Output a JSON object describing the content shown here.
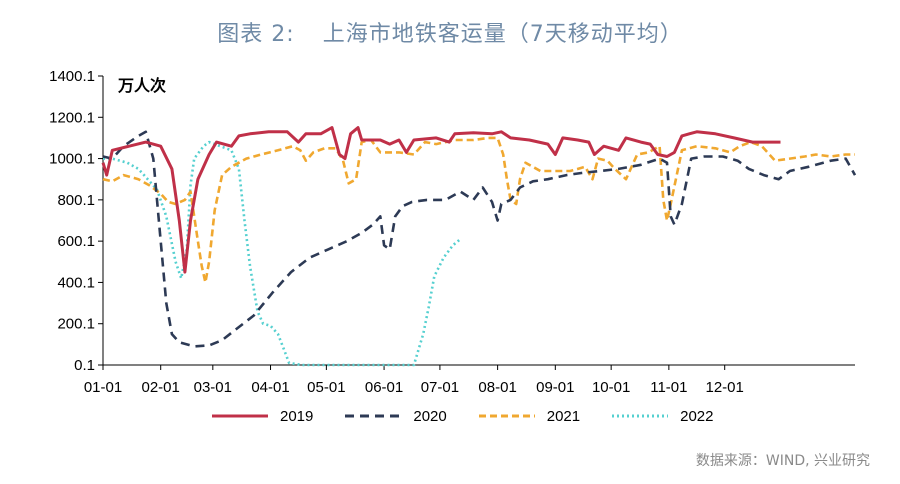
{
  "title": {
    "label": "图表 2:",
    "text": "上海市地铁客运量（7天移动平均）"
  },
  "source": "数据来源：WIND, 兴业研究",
  "colors": {
    "2019": "#c03048",
    "2020": "#2d3a55",
    "2021": "#f0a830",
    "2022": "#56d0d0"
  },
  "chart_data": {
    "type": "line",
    "title": "上海市地铁客运量（7天移动平均）",
    "ylabel": "万人次",
    "xlabel": "",
    "ylim": [
      0.1,
      1400.1
    ],
    "y_ticks": [
      "0.1",
      "200.1",
      "400.1",
      "600.1",
      "800.1",
      "1000.1",
      "1200.1",
      "1400.1"
    ],
    "x_ticks": [
      "01-01",
      "02-01",
      "03-01",
      "04-01",
      "05-01",
      "06-01",
      "07-01",
      "08-01",
      "09-01",
      "10-01",
      "11-01",
      "12-01"
    ],
    "x_unit": "day of year",
    "legend_position": "bottom",
    "series": [
      {
        "name": "2019",
        "style": "solid",
        "points": [
          [
            1,
            980
          ],
          [
            3,
            920
          ],
          [
            6,
            1040
          ],
          [
            15,
            1060
          ],
          [
            24,
            1080
          ],
          [
            32,
            1060
          ],
          [
            38,
            950
          ],
          [
            42,
            700
          ],
          [
            45,
            450
          ],
          [
            48,
            700
          ],
          [
            52,
            900
          ],
          [
            58,
            1020
          ],
          [
            62,
            1080
          ],
          [
            70,
            1060
          ],
          [
            74,
            1110
          ],
          [
            80,
            1120
          ],
          [
            90,
            1130
          ],
          [
            100,
            1130
          ],
          [
            106,
            1080
          ],
          [
            110,
            1120
          ],
          [
            118,
            1120
          ],
          [
            124,
            1150
          ],
          [
            128,
            1020
          ],
          [
            131,
            1000
          ],
          [
            134,
            1120
          ],
          [
            138,
            1150
          ],
          [
            140,
            1090
          ],
          [
            150,
            1090
          ],
          [
            155,
            1070
          ],
          [
            160,
            1090
          ],
          [
            164,
            1030
          ],
          [
            168,
            1090
          ],
          [
            180,
            1100
          ],
          [
            187,
            1080
          ],
          [
            190,
            1120
          ],
          [
            200,
            1125
          ],
          [
            210,
            1120
          ],
          [
            215,
            1130
          ],
          [
            220,
            1100
          ],
          [
            230,
            1090
          ],
          [
            240,
            1070
          ],
          [
            244,
            1020
          ],
          [
            248,
            1100
          ],
          [
            256,
            1090
          ],
          [
            262,
            1080
          ],
          [
            265,
            1020
          ],
          [
            270,
            1060
          ],
          [
            278,
            1040
          ],
          [
            282,
            1100
          ],
          [
            290,
            1080
          ],
          [
            295,
            1070
          ],
          [
            299,
            1020
          ],
          [
            304,
            1010
          ],
          [
            308,
            1030
          ],
          [
            312,
            1110
          ],
          [
            316,
            1120
          ],
          [
            320,
            1130
          ],
          [
            330,
            1120
          ],
          [
            340,
            1100
          ],
          [
            350,
            1080
          ],
          [
            360,
            1080
          ],
          [
            365,
            1080
          ]
        ]
      },
      {
        "name": "2020",
        "style": "dashed",
        "points": [
          [
            1,
            1010
          ],
          [
            6,
            1000
          ],
          [
            12,
            1060
          ],
          [
            20,
            1110
          ],
          [
            24,
            1130
          ],
          [
            28,
            1000
          ],
          [
            32,
            600
          ],
          [
            35,
            300
          ],
          [
            38,
            150
          ],
          [
            42,
            110
          ],
          [
            50,
            90
          ],
          [
            58,
            95
          ],
          [
            65,
            120
          ],
          [
            72,
            170
          ],
          [
            82,
            240
          ],
          [
            92,
            350
          ],
          [
            102,
            450
          ],
          [
            112,
            520
          ],
          [
            122,
            560
          ],
          [
            132,
            600
          ],
          [
            140,
            640
          ],
          [
            146,
            680
          ],
          [
            150,
            720
          ],
          [
            152,
            580
          ],
          [
            155,
            560
          ],
          [
            158,
            720
          ],
          [
            162,
            770
          ],
          [
            167,
            790
          ],
          [
            175,
            800
          ],
          [
            185,
            800
          ],
          [
            193,
            840
          ],
          [
            200,
            800
          ],
          [
            205,
            860
          ],
          [
            210,
            790
          ],
          [
            213,
            700
          ],
          [
            215,
            780
          ],
          [
            220,
            800
          ],
          [
            225,
            860
          ],
          [
            232,
            890
          ],
          [
            240,
            900
          ],
          [
            250,
            920
          ],
          [
            258,
            930
          ],
          [
            268,
            940
          ],
          [
            278,
            950
          ],
          [
            290,
            970
          ],
          [
            300,
            1000
          ],
          [
            304,
            980
          ],
          [
            306,
            720
          ],
          [
            308,
            680
          ],
          [
            312,
            780
          ],
          [
            317,
            1000
          ],
          [
            324,
            1010
          ],
          [
            334,
            1010
          ],
          [
            342,
            990
          ],
          [
            348,
            950
          ],
          [
            356,
            920
          ],
          [
            364,
            900
          ],
          [
            370,
            940
          ],
          [
            380,
            960
          ],
          [
            392,
            990
          ],
          [
            400,
            1000
          ],
          [
            405,
            920
          ]
        ]
      },
      {
        "name": "2021",
        "style": "dashed",
        "points": [
          [
            1,
            900
          ],
          [
            6,
            890
          ],
          [
            12,
            920
          ],
          [
            20,
            900
          ],
          [
            26,
            870
          ],
          [
            32,
            830
          ],
          [
            36,
            790
          ],
          [
            40,
            780
          ],
          [
            45,
            800
          ],
          [
            48,
            840
          ],
          [
            52,
            600
          ],
          [
            54,
            480
          ],
          [
            56,
            400
          ],
          [
            58,
            500
          ],
          [
            61,
            750
          ],
          [
            65,
            920
          ],
          [
            70,
            960
          ],
          [
            78,
            1000
          ],
          [
            86,
            1020
          ],
          [
            95,
            1040
          ],
          [
            103,
            1060
          ],
          [
            107,
            1040
          ],
          [
            110,
            990
          ],
          [
            114,
            1030
          ],
          [
            120,
            1050
          ],
          [
            126,
            1050
          ],
          [
            130,
            990
          ],
          [
            133,
            880
          ],
          [
            137,
            900
          ],
          [
            140,
            1080
          ],
          [
            145,
            1090
          ],
          [
            150,
            1030
          ],
          [
            160,
            1030
          ],
          [
            168,
            1020
          ],
          [
            174,
            1080
          ],
          [
            180,
            1070
          ],
          [
            190,
            1090
          ],
          [
            200,
            1090
          ],
          [
            208,
            1100
          ],
          [
            213,
            1100
          ],
          [
            216,
            1020
          ],
          [
            218,
            900
          ],
          [
            220,
            800
          ],
          [
            223,
            780
          ],
          [
            225,
            900
          ],
          [
            228,
            980
          ],
          [
            236,
            940
          ],
          [
            244,
            940
          ],
          [
            252,
            940
          ],
          [
            260,
            960
          ],
          [
            264,
            900
          ],
          [
            267,
            1000
          ],
          [
            272,
            990
          ],
          [
            276,
            950
          ],
          [
            282,
            900
          ],
          [
            288,
            1020
          ],
          [
            294,
            1030
          ],
          [
            300,
            1060
          ],
          [
            302,
            800
          ],
          [
            304,
            700
          ],
          [
            306,
            780
          ],
          [
            312,
            1040
          ],
          [
            320,
            1060
          ],
          [
            330,
            1050
          ],
          [
            338,
            1030
          ],
          [
            343,
            1060
          ],
          [
            349,
            1080
          ],
          [
            355,
            1060
          ],
          [
            362,
            990
          ],
          [
            370,
            1000
          ],
          [
            378,
            1010
          ],
          [
            384,
            1020
          ],
          [
            392,
            1010
          ],
          [
            400,
            1020
          ],
          [
            405,
            1020
          ]
        ]
      },
      {
        "name": "2022",
        "style": "dotted",
        "points": [
          [
            1,
            1000
          ],
          [
            6,
            1000
          ],
          [
            14,
            980
          ],
          [
            20,
            950
          ],
          [
            25,
            900
          ],
          [
            30,
            850
          ],
          [
            35,
            720
          ],
          [
            40,
            500
          ],
          [
            43,
            420
          ],
          [
            46,
            560
          ],
          [
            48,
            870
          ],
          [
            50,
            1000
          ],
          [
            55,
            1060
          ],
          [
            58,
            1080
          ],
          [
            64,
            1060
          ],
          [
            70,
            1040
          ],
          [
            74,
            950
          ],
          [
            77,
            700
          ],
          [
            80,
            480
          ],
          [
            84,
            260
          ],
          [
            87,
            200
          ],
          [
            91,
            190
          ],
          [
            95,
            150
          ],
          [
            98,
            80
          ],
          [
            101,
            10
          ],
          [
            108,
            0.1
          ],
          [
            130,
            0.1
          ],
          [
            150,
            0.1
          ],
          [
            168,
            0.1
          ],
          [
            173,
            150
          ],
          [
            176,
            280
          ],
          [
            179,
            430
          ],
          [
            184,
            520
          ],
          [
            189,
            580
          ],
          [
            193,
            610
          ]
        ]
      }
    ]
  }
}
